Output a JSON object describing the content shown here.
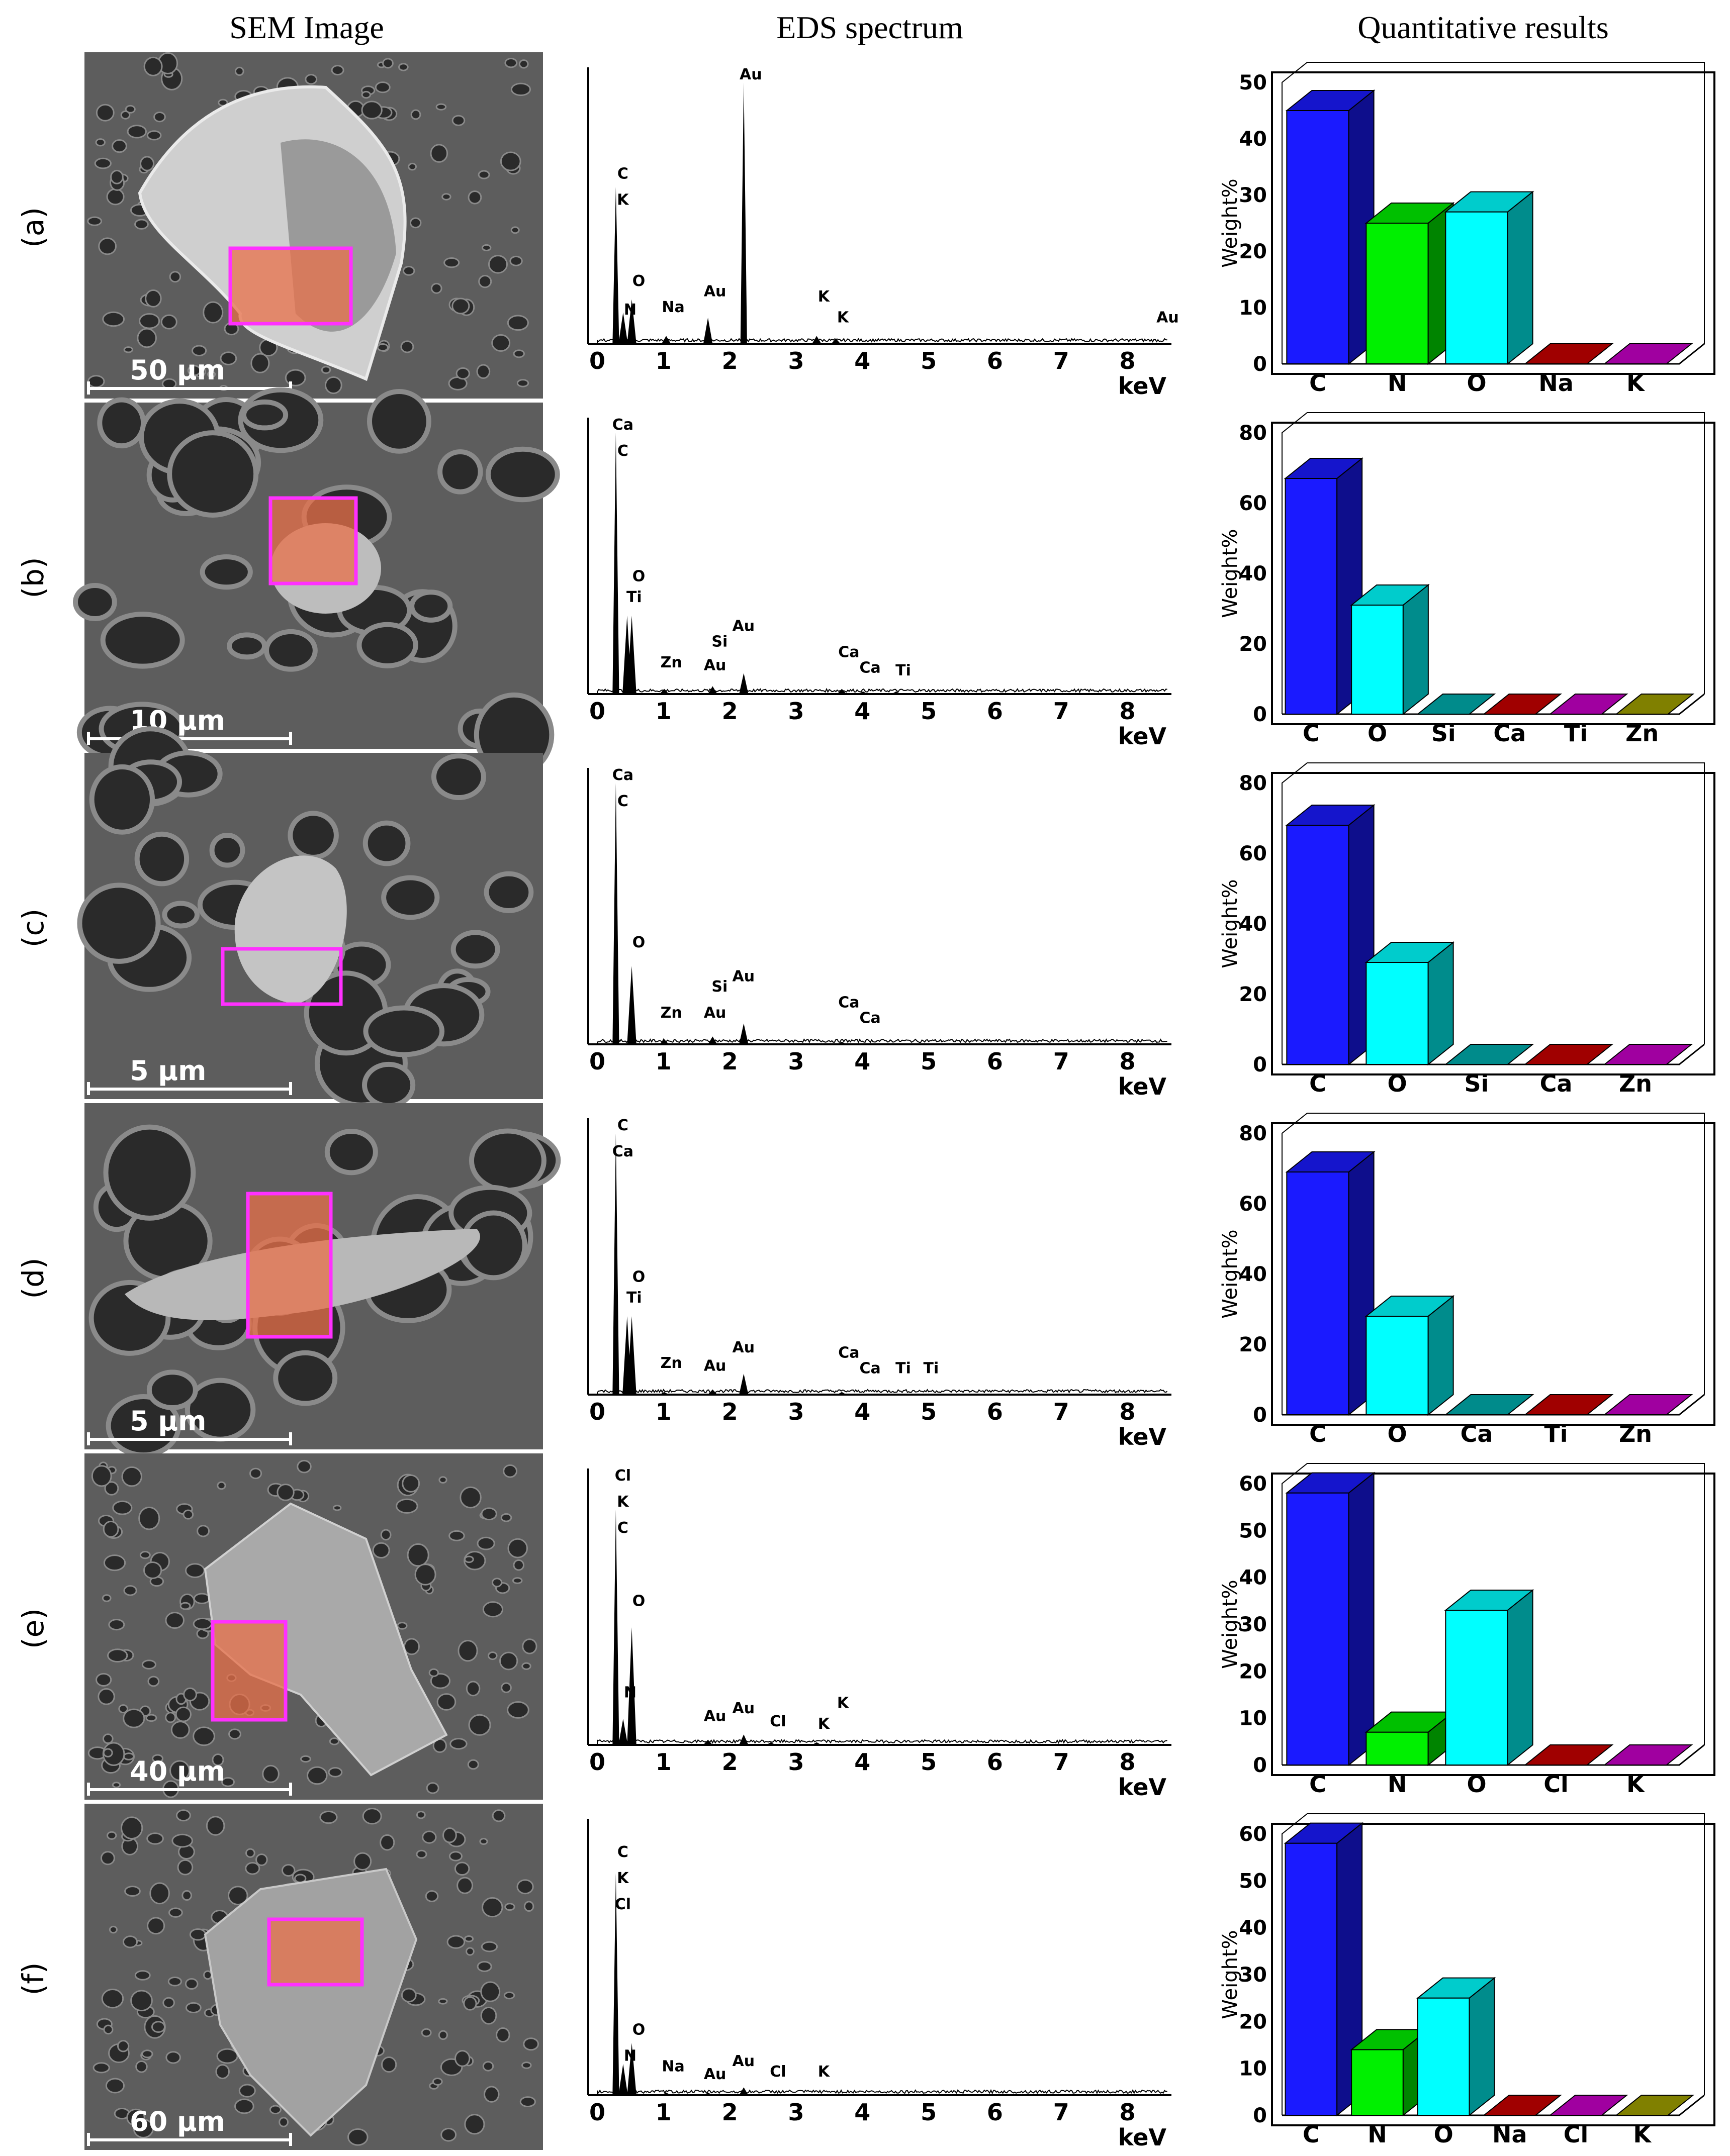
{
  "headers": {
    "sem": "SEM Image",
    "eds": "EDS spectrum",
    "quant": "Quantitative results"
  },
  "x_axis_unit": "keV",
  "y_axis_label": "Weight%",
  "colors": {
    "C": "#0000ee",
    "N": "#00ee00",
    "O": "#00ffff",
    "Na": "#990000",
    "K": "#990099",
    "Si": "#008080",
    "Ca": "#990000",
    "Ti": "#990099",
    "Zn": "#808000",
    "Cl": "#990000",
    "Zn_alt": "#990099"
  },
  "rows": [
    {
      "label": "(a)",
      "scale": "50 µm",
      "sem_kind": "particle-bright",
      "eds_peaks": [
        {
          "e": 0.28,
          "h": 0.6
        },
        {
          "e": 0.39,
          "h": 0.12
        },
        {
          "e": 0.52,
          "h": 0.17
        },
        {
          "e": 1.04,
          "h": 0.03
        },
        {
          "e": 1.67,
          "h": 0.1
        },
        {
          "e": 2.21,
          "h": 1.0
        },
        {
          "e": 3.31,
          "h": 0.03
        },
        {
          "e": 3.6,
          "h": 0.02
        }
      ],
      "eds_labels": [
        {
          "t": "Au",
          "e": 2.21,
          "h": 1.0
        },
        {
          "t": "C",
          "e": 0.28,
          "h": 0.62
        },
        {
          "t": "K",
          "e": 0.28,
          "h": 0.52
        },
        {
          "t": "O",
          "e": 0.52,
          "h": 0.21
        },
        {
          "t": "N",
          "e": 0.39,
          "h": 0.1
        },
        {
          "t": "Na",
          "e": 1.04,
          "h": 0.11
        },
        {
          "t": "Au",
          "e": 1.67,
          "h": 0.17
        },
        {
          "t": "K",
          "e": 3.31,
          "h": 0.15
        },
        {
          "t": "K",
          "e": 3.6,
          "h": 0.07
        },
        {
          "t": "Au",
          "e": 8.5,
          "h": 0.07
        }
      ],
      "chart_data": {
        "type": "bar",
        "categories": [
          "C",
          "N",
          "O",
          "Na",
          "K"
        ],
        "values": [
          45,
          25,
          27,
          0,
          0
        ],
        "ylim": [
          0,
          50
        ],
        "yticks": [
          0,
          10,
          20,
          30,
          40,
          50
        ],
        "ylabel": "Weight%"
      }
    },
    {
      "label": "(b)",
      "scale": "10 µm",
      "sem_kind": "porous",
      "eds_peaks": [
        {
          "e": 0.28,
          "h": 1.0
        },
        {
          "e": 0.45,
          "h": 0.3
        },
        {
          "e": 0.52,
          "h": 0.3
        },
        {
          "e": 1.01,
          "h": 0.02
        },
        {
          "e": 1.74,
          "h": 0.03
        },
        {
          "e": 2.21,
          "h": 0.08
        },
        {
          "e": 3.69,
          "h": 0.02
        },
        {
          "e": 4.01,
          "h": 0.01
        },
        {
          "e": 4.51,
          "h": 0.01
        }
      ],
      "eds_labels": [
        {
          "t": "Ca",
          "e": 0.28,
          "h": 1.0
        },
        {
          "t": "C",
          "e": 0.28,
          "h": 0.9
        },
        {
          "t": "O",
          "e": 0.52,
          "h": 0.42
        },
        {
          "t": "Ti",
          "e": 0.45,
          "h": 0.34
        },
        {
          "t": "Au",
          "e": 2.1,
          "h": 0.23
        },
        {
          "t": "Si",
          "e": 1.74,
          "h": 0.17
        },
        {
          "t": "Zn",
          "e": 1.01,
          "h": 0.09
        },
        {
          "t": "Au",
          "e": 1.67,
          "h": 0.08
        },
        {
          "t": "Ca",
          "e": 3.69,
          "h": 0.13
        },
        {
          "t": "Ca",
          "e": 4.01,
          "h": 0.07
        },
        {
          "t": "Ti",
          "e": 4.51,
          "h": 0.06
        }
      ],
      "chart_data": {
        "type": "bar",
        "categories": [
          "C",
          "O",
          "Si",
          "Ca",
          "Ti",
          "Zn"
        ],
        "values": [
          67,
          31,
          0,
          0,
          0,
          0
        ],
        "ylim": [
          0,
          80
        ],
        "yticks": [
          0,
          20,
          40,
          60,
          80
        ],
        "ylabel": "Weight%"
      }
    },
    {
      "label": "(c)",
      "scale": "5 µm",
      "sem_kind": "porous-zoom",
      "eds_peaks": [
        {
          "e": 0.28,
          "h": 1.0
        },
        {
          "e": 0.52,
          "h": 0.3
        },
        {
          "e": 1.01,
          "h": 0.02
        },
        {
          "e": 1.74,
          "h": 0.03
        },
        {
          "e": 2.21,
          "h": 0.08
        },
        {
          "e": 3.69,
          "h": 0.01
        }
      ],
      "eds_labels": [
        {
          "t": "Ca",
          "e": 0.28,
          "h": 1.0
        },
        {
          "t": "C",
          "e": 0.28,
          "h": 0.9
        },
        {
          "t": "O",
          "e": 0.52,
          "h": 0.36
        },
        {
          "t": "Au",
          "e": 2.1,
          "h": 0.23
        },
        {
          "t": "Si",
          "e": 1.74,
          "h": 0.19
        },
        {
          "t": "Zn",
          "e": 1.01,
          "h": 0.09
        },
        {
          "t": "Au",
          "e": 1.67,
          "h": 0.09
        },
        {
          "t": "Ca",
          "e": 3.69,
          "h": 0.13
        },
        {
          "t": "Ca",
          "e": 4.01,
          "h": 0.07
        }
      ],
      "chart_data": {
        "type": "bar",
        "categories": [
          "C",
          "O",
          "Si",
          "Ca",
          "Zn"
        ],
        "values": [
          68,
          29,
          0,
          0,
          0
        ],
        "ylim": [
          0,
          80
        ],
        "yticks": [
          0,
          20,
          40,
          60,
          80
        ],
        "ylabel": "Weight%"
      }
    },
    {
      "label": "(d)",
      "scale": "5 µm",
      "sem_kind": "porous-zoom2",
      "eds_peaks": [
        {
          "e": 0.28,
          "h": 1.0
        },
        {
          "e": 0.45,
          "h": 0.3
        },
        {
          "e": 0.52,
          "h": 0.3
        },
        {
          "e": 1.01,
          "h": 0.01
        },
        {
          "e": 1.74,
          "h": 0.02
        },
        {
          "e": 2.21,
          "h": 0.08
        },
        {
          "e": 3.69,
          "h": 0.01
        }
      ],
      "eds_labels": [
        {
          "t": "C",
          "e": 0.28,
          "h": 1.0
        },
        {
          "t": "Ca",
          "e": 0.28,
          "h": 0.9
        },
        {
          "t": "O",
          "e": 0.52,
          "h": 0.42
        },
        {
          "t": "Ti",
          "e": 0.45,
          "h": 0.34
        },
        {
          "t": "Au",
          "e": 2.1,
          "h": 0.15
        },
        {
          "t": "Zn",
          "e": 1.01,
          "h": 0.09
        },
        {
          "t": "Au",
          "e": 1.67,
          "h": 0.08
        },
        {
          "t": "Ca",
          "e": 3.69,
          "h": 0.13
        },
        {
          "t": "Ca",
          "e": 4.01,
          "h": 0.07
        },
        {
          "t": "Ti",
          "e": 4.51,
          "h": 0.07
        },
        {
          "t": "Ti",
          "e": 4.93,
          "h": 0.07
        }
      ],
      "chart_data": {
        "type": "bar",
        "categories": [
          "C",
          "O",
          "Ca",
          "Ti",
          "Zn"
        ],
        "values": [
          69,
          28,
          0,
          0,
          0
        ],
        "ylim": [
          0,
          80
        ],
        "yticks": [
          0,
          20,
          40,
          60,
          80
        ],
        "ylabel": "Weight%"
      }
    },
    {
      "label": "(e)",
      "scale": "40 µm",
      "sem_kind": "flake",
      "eds_peaks": [
        {
          "e": 0.28,
          "h": 0.9
        },
        {
          "e": 0.39,
          "h": 0.1
        },
        {
          "e": 0.52,
          "h": 0.45
        },
        {
          "e": 1.67,
          "h": 0.02
        },
        {
          "e": 2.21,
          "h": 0.04
        },
        {
          "e": 2.62,
          "h": 0.01
        },
        {
          "e": 3.31,
          "h": 0.01
        }
      ],
      "eds_labels": [
        {
          "t": "Cl",
          "e": 0.28,
          "h": 1.0
        },
        {
          "t": "K",
          "e": 0.28,
          "h": 0.9
        },
        {
          "t": "C",
          "e": 0.28,
          "h": 0.8
        },
        {
          "t": "O",
          "e": 0.52,
          "h": 0.52
        },
        {
          "t": "N",
          "e": 0.39,
          "h": 0.17
        },
        {
          "t": "Au",
          "e": 2.1,
          "h": 0.11
        },
        {
          "t": "Au",
          "e": 1.67,
          "h": 0.08
        },
        {
          "t": "Cl",
          "e": 2.62,
          "h": 0.06
        },
        {
          "t": "K",
          "e": 3.31,
          "h": 0.05
        },
        {
          "t": "K",
          "e": 3.6,
          "h": 0.13
        }
      ],
      "chart_data": {
        "type": "bar",
        "categories": [
          "C",
          "N",
          "O",
          "Cl",
          "K"
        ],
        "values": [
          58,
          7,
          33,
          0,
          0
        ],
        "ylim": [
          0,
          60
        ],
        "yticks": [
          0,
          10,
          20,
          30,
          40,
          50,
          60
        ],
        "ylabel": "Weight%"
      }
    },
    {
      "label": "(f)",
      "scale": "60 µm",
      "sem_kind": "flake2",
      "eds_peaks": [
        {
          "e": 0.28,
          "h": 0.85
        },
        {
          "e": 0.39,
          "h": 0.12
        },
        {
          "e": 0.52,
          "h": 0.2
        },
        {
          "e": 1.04,
          "h": 0.01
        },
        {
          "e": 1.67,
          "h": 0.01
        },
        {
          "e": 2.21,
          "h": 0.03
        }
      ],
      "eds_labels": [
        {
          "t": "C",
          "e": 0.28,
          "h": 0.9
        },
        {
          "t": "K",
          "e": 0.28,
          "h": 0.8
        },
        {
          "t": "Cl",
          "e": 0.28,
          "h": 0.7
        },
        {
          "t": "O",
          "e": 0.52,
          "h": 0.22
        },
        {
          "t": "N",
          "e": 0.39,
          "h": 0.12
        },
        {
          "t": "Na",
          "e": 1.04,
          "h": 0.08
        },
        {
          "t": "Au",
          "e": 2.1,
          "h": 0.1
        },
        {
          "t": "Au",
          "e": 1.67,
          "h": 0.05
        },
        {
          "t": "Cl",
          "e": 2.62,
          "h": 0.06
        },
        {
          "t": "K",
          "e": 3.31,
          "h": 0.06
        }
      ],
      "chart_data": {
        "type": "bar",
        "categories": [
          "C",
          "N",
          "O",
          "Na",
          "Cl",
          "K"
        ],
        "values": [
          58,
          14,
          25,
          0,
          0,
          0
        ],
        "ylim": [
          0,
          60
        ],
        "yticks": [
          0,
          10,
          20,
          30,
          40,
          50,
          60
        ],
        "ylabel": "Weight%"
      }
    }
  ],
  "element_colors": {
    "C": "#1a1aff",
    "N": "#00f000",
    "O": "#00ffff",
    "Na": "#a00000",
    "K": "#a000a0",
    "Si": "#008b8b",
    "Ca": "#a00000",
    "Ti": "#a000a0",
    "Zn": "#808000",
    "Cl": "#a00000"
  },
  "element_colors_by_row": [
    {
      "Na": "#a00000",
      "K": "#a000a0"
    },
    {
      "Si": "#008b8b",
      "Ca": "#a00000",
      "Ti": "#a000a0",
      "Zn": "#808000"
    },
    {
      "Si": "#008b8b",
      "Ca": "#a00000",
      "Zn": "#a000a0"
    },
    {
      "Ca": "#008b8b",
      "Ti": "#a00000",
      "Zn": "#a000a0"
    },
    {
      "Cl": "#a00000",
      "K": "#a000a0"
    },
    {
      "Na": "#a00000",
      "Cl": "#a000a0",
      "K": "#808000"
    }
  ],
  "eds_xticks": [
    0,
    1,
    2,
    3,
    4,
    5,
    6,
    7,
    8
  ]
}
